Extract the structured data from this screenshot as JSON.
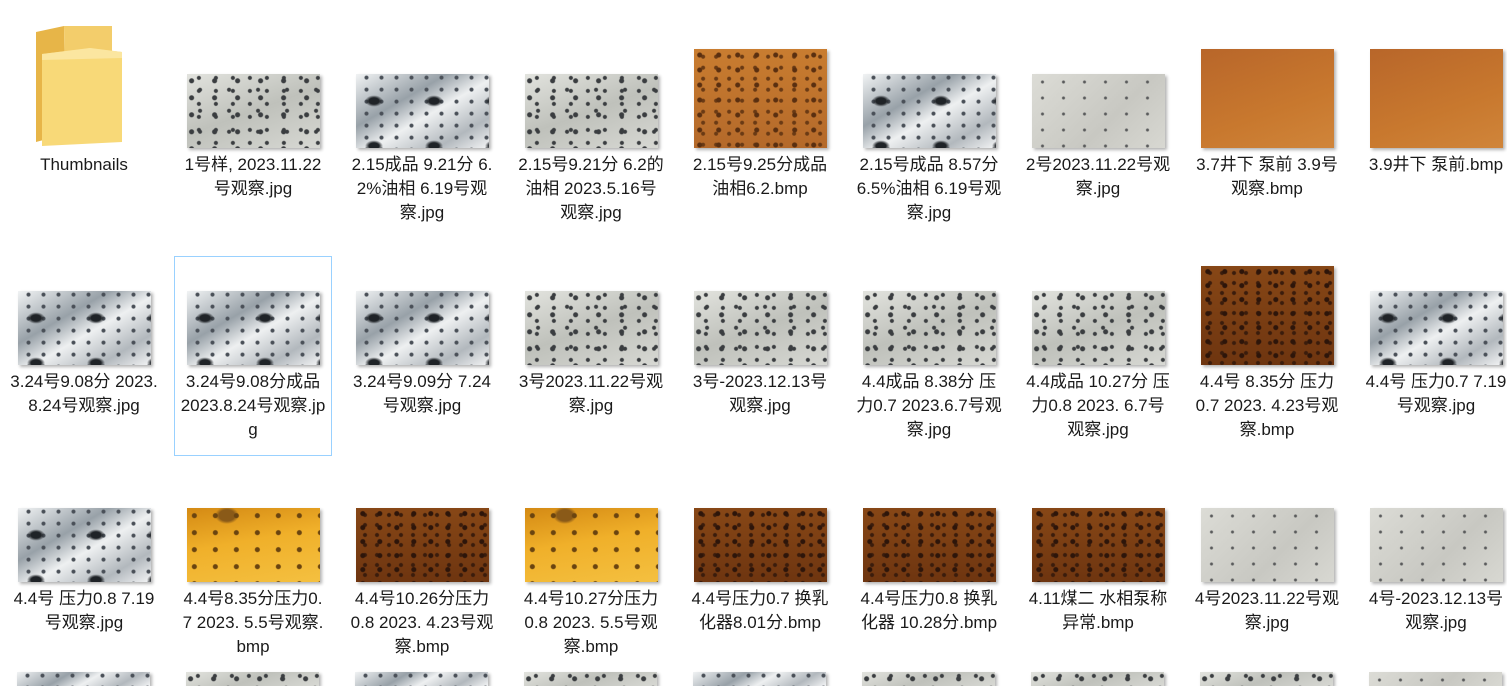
{
  "folder": {
    "label": "Thumbnails"
  },
  "files": [
    {
      "label": "1号样, 2023.11.22号观察.jpg",
      "thumb": "gray"
    },
    {
      "label": "2.15成品 9.21分 6.2%油相  6.19号观察.jpg",
      "thumb": "white"
    },
    {
      "label": "2.15号9.21分 6.2的油相 2023.5.16号观察.jpg",
      "thumb": "gray"
    },
    {
      "label": "2.15号9.25分成品 油相6.2.bmp",
      "thumb": "orange"
    },
    {
      "label": "2.15号成品 8.57分 6.5%油相 6.19号观察.jpg",
      "thumb": "white"
    },
    {
      "label": "2号2023.11.22号观察.jpg",
      "thumb": "light"
    },
    {
      "label": "3.7井下 泵前 3.9号观察.bmp",
      "thumb": "orange-plain"
    },
    {
      "label": "3.9井下 泵前.bmp",
      "thumb": "orange-plain"
    },
    {
      "label": "3.24号9.08分 2023.8.24号观察.jpg",
      "thumb": "white"
    },
    {
      "label": "3.24号9.08分成品  2023.8.24号观察.jpg",
      "thumb": "white"
    },
    {
      "label": "3.24号9.09分 7.24号观察.jpg",
      "thumb": "white"
    },
    {
      "label": "3号2023.11.22号观察.jpg",
      "thumb": "gray"
    },
    {
      "label": "3号-2023.12.13号观察.jpg",
      "thumb": "gray"
    },
    {
      "label": "4.4成品 8.38分 压力0.7 2023.6.7号观察.jpg",
      "thumb": "gray"
    },
    {
      "label": "4.4成品 10.27分 压力0.8  2023. 6.7号观察.jpg",
      "thumb": "gray"
    },
    {
      "label": "4.4号 8.35分 压力0.7  2023. 4.23号观察.bmp",
      "thumb": "brown"
    },
    {
      "label": "4.4号 压力0.7 7.19号观察.jpg",
      "thumb": "white"
    },
    {
      "label": "4.4号 压力0.8 7.19号观察.jpg",
      "thumb": "white"
    },
    {
      "label": "4.4号8.35分压力0.7  2023. 5.5号观察.bmp",
      "thumb": "yellow"
    },
    {
      "label": "4.4号10.26分压力0.8  2023. 4.23号观察.bmp",
      "thumb": "brown"
    },
    {
      "label": "4.4号10.27分压力0.8 2023. 5.5号观察.bmp",
      "thumb": "yellow"
    },
    {
      "label": "4.4号压力0.7 换乳化器8.01分.bmp",
      "thumb": "brown"
    },
    {
      "label": "4.4号压力0.8 换乳化器 10.28分.bmp",
      "thumb": "brown"
    },
    {
      "label": "4.11煤二 水相泵称异常.bmp",
      "thumb": "brown"
    },
    {
      "label": "4号2023.11.22号观察.jpg",
      "thumb": "light"
    },
    {
      "label": "4号-2023.12.13号观察.jpg",
      "thumb": "light"
    }
  ],
  "selected_index": 9
}
